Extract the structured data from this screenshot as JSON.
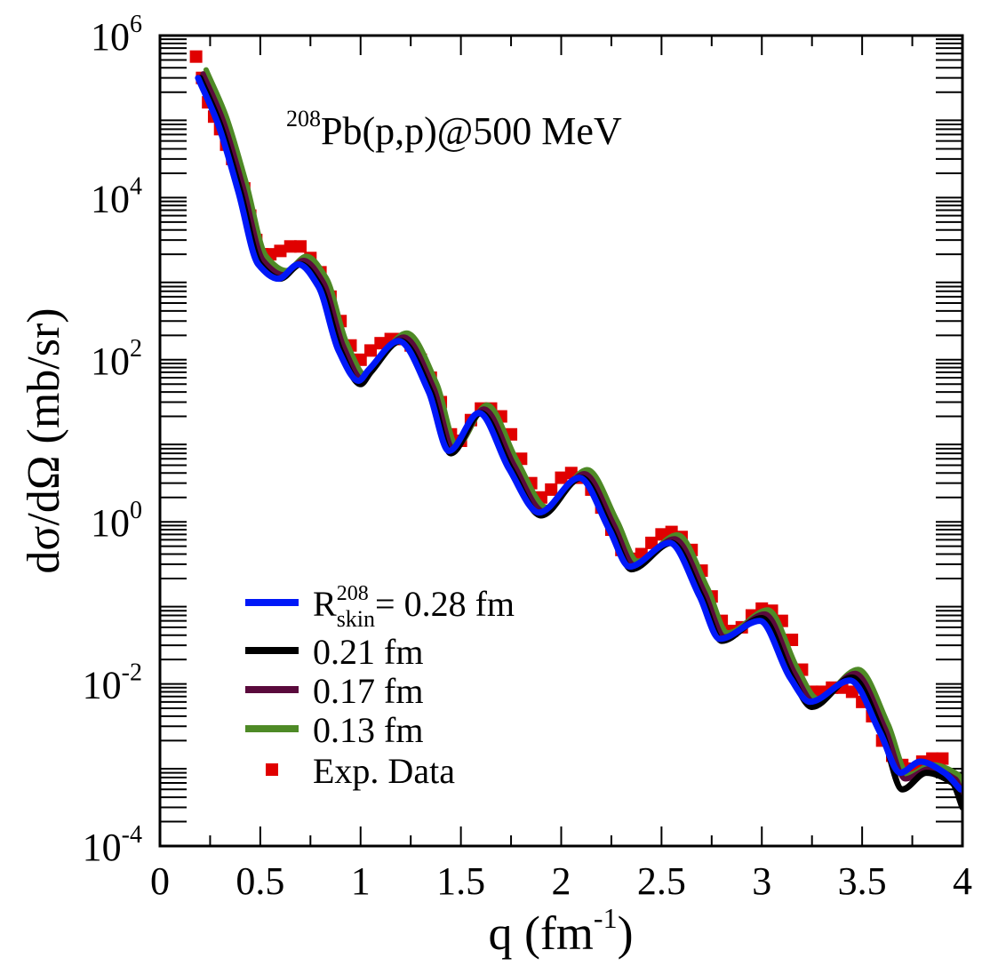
{
  "chart_data": {
    "type": "line",
    "title": "208Pb(p,p)@500 MeV",
    "title_parts": {
      "sup": "208",
      "main": "Pb(p,p)@500 MeV"
    },
    "xlabel": "q (fm-1)",
    "xlabel_parts": {
      "main": "q (fm",
      "sup": "-1",
      "close": ")"
    },
    "ylabel": "dσ/dΩ (mb/sr)",
    "x_scale": "linear",
    "y_scale": "log",
    "xlim": [
      0,
      4
    ],
    "ylim": [
      0.0001,
      1000000
    ],
    "x_ticks": [
      0,
      0.5,
      1,
      1.5,
      2,
      2.5,
      3,
      3.5,
      4
    ],
    "x_tick_labels": [
      "0",
      "0.5",
      "1",
      "1.5",
      "2",
      "2.5",
      "3",
      "3.5",
      "4"
    ],
    "y_ticks": [
      {
        "value": 0.0001,
        "base": "10",
        "exp": "-4"
      },
      {
        "value": 0.01,
        "base": "10",
        "exp": "-2"
      },
      {
        "value": 1,
        "base": "10",
        "exp": "0"
      },
      {
        "value": 100,
        "base": "10",
        "exp": "2"
      },
      {
        "value": 10000,
        "base": "10",
        "exp": "4"
      },
      {
        "value": 1000000,
        "base": "10",
        "exp": "6"
      }
    ],
    "legend_position": "bottom-left",
    "legend": [
      {
        "label_main": "R",
        "label_sup": "208",
        "label_sub": "skin",
        "label_rest": "= 0.28 fm",
        "color": "#0018f8",
        "kind": "line"
      },
      {
        "label_main": "0.21 fm",
        "color": "#000000",
        "kind": "line"
      },
      {
        "label_main": "0.17 fm",
        "color": "#5a0a3c",
        "kind": "line"
      },
      {
        "label_main": "0.13 fm",
        "color": "#4e8a26",
        "kind": "line"
      },
      {
        "label_main": "Exp. Data",
        "color": "#e00000",
        "kind": "marker"
      }
    ],
    "series": [
      {
        "name": "0.13 fm",
        "color": "#4e8a26",
        "width": 6,
        "x_shift": 0.03,
        "y_shift_dec": 0.1,
        "x": [
          0.2,
          0.3,
          0.4,
          0.5,
          0.6,
          0.7,
          0.8,
          0.9,
          1.0,
          1.05,
          1.2,
          1.35,
          1.45,
          1.6,
          1.75,
          1.9,
          2.1,
          2.25,
          2.35,
          2.55,
          2.7,
          2.8,
          3.0,
          3.15,
          3.25,
          3.45,
          3.6,
          3.7,
          3.82,
          3.95,
          4.0
        ],
        "y": [
          300000,
          80000,
          12000,
          1500,
          1000,
          1500,
          800,
          130,
          50,
          70,
          170,
          40,
          7,
          22,
          4.5,
          1.2,
          3.5,
          0.8,
          0.26,
          0.55,
          0.12,
          0.034,
          0.065,
          0.012,
          0.0052,
          0.012,
          0.0025,
          0.0006,
          0.0008,
          0.0006,
          0.0003
        ]
      },
      {
        "name": "0.17 fm",
        "color": "#5a0a3c",
        "width": 6,
        "x_shift": 0.015,
        "y_shift_dec": 0.05,
        "x": [
          0.2,
          0.3,
          0.4,
          0.5,
          0.6,
          0.7,
          0.8,
          0.9,
          1.0,
          1.05,
          1.2,
          1.35,
          1.45,
          1.6,
          1.75,
          1.9,
          2.1,
          2.25,
          2.35,
          2.55,
          2.7,
          2.8,
          3.0,
          3.15,
          3.25,
          3.45,
          3.6,
          3.7,
          3.82,
          3.95,
          4.0
        ],
        "y": [
          300000,
          80000,
          12000,
          1500,
          1000,
          1500,
          800,
          130,
          50,
          70,
          170,
          40,
          7,
          22,
          4.5,
          1.2,
          3.5,
          0.8,
          0.26,
          0.55,
          0.12,
          0.034,
          0.065,
          0.012,
          0.0052,
          0.012,
          0.0025,
          0.0006,
          0.0008,
          0.0006,
          0.0003
        ]
      },
      {
        "name": "0.21 fm",
        "color": "#000000",
        "width": 7,
        "x_shift": 0.0,
        "y_shift_dec": 0.0,
        "x": [
          0.2,
          0.3,
          0.4,
          0.5,
          0.6,
          0.7,
          0.8,
          0.9,
          1.0,
          1.05,
          1.2,
          1.35,
          1.45,
          1.6,
          1.75,
          1.9,
          2.1,
          2.25,
          2.35,
          2.55,
          2.7,
          2.8,
          3.0,
          3.15,
          3.25,
          3.45,
          3.6,
          3.7,
          3.82,
          3.95,
          4.0
        ],
        "y": [
          300000,
          80000,
          12000,
          1500,
          1000,
          1500,
          800,
          130,
          50,
          70,
          170,
          40,
          7,
          22,
          4.5,
          1.2,
          3.5,
          0.8,
          0.26,
          0.55,
          0.12,
          0.034,
          0.065,
          0.012,
          0.0052,
          0.012,
          0.0025,
          0.0005,
          0.0008,
          0.0006,
          0.0003
        ]
      },
      {
        "name": "R208skin = 0.28 fm",
        "color": "#0018f8",
        "width": 7,
        "x_shift": -0.01,
        "y_shift_dec": 0.0,
        "x": [
          0.2,
          0.3,
          0.4,
          0.5,
          0.6,
          0.7,
          0.8,
          0.9,
          1.0,
          1.05,
          1.2,
          1.35,
          1.45,
          1.6,
          1.75,
          1.9,
          2.1,
          2.25,
          2.35,
          2.55,
          2.7,
          2.8,
          3.0,
          3.15,
          3.25,
          3.45,
          3.6,
          3.7,
          3.8,
          3.92,
          4.0
        ],
        "y": [
          300000,
          80000,
          12000,
          1500,
          1000,
          1500,
          800,
          130,
          55,
          75,
          170,
          40,
          7.5,
          22,
          4.5,
          1.3,
          3.5,
          0.8,
          0.28,
          0.55,
          0.12,
          0.036,
          0.06,
          0.012,
          0.006,
          0.011,
          0.0025,
          0.0008,
          0.0011,
          0.0008,
          0.0005
        ]
      }
    ],
    "exp_data": {
      "name": "Exp. Data",
      "color": "#e00000",
      "x": [
        0.18,
        0.21,
        0.24,
        0.27,
        0.3,
        0.33,
        0.36,
        0.39,
        0.42,
        0.45,
        0.48,
        0.51,
        0.55,
        0.6,
        0.65,
        0.7,
        0.75,
        0.8,
        0.85,
        0.9,
        0.95,
        1.0,
        1.05,
        1.1,
        1.15,
        1.2,
        1.25,
        1.3,
        1.35,
        1.4,
        1.45,
        1.5,
        1.55,
        1.6,
        1.65,
        1.7,
        1.75,
        1.8,
        1.85,
        1.9,
        1.95,
        2.0,
        2.05,
        2.1,
        2.15,
        2.2,
        2.25,
        2.3,
        2.35,
        2.4,
        2.45,
        2.5,
        2.55,
        2.6,
        2.65,
        2.7,
        2.75,
        2.8,
        2.85,
        2.9,
        2.95,
        3.0,
        3.05,
        3.1,
        3.15,
        3.2,
        3.25,
        3.3,
        3.35,
        3.4,
        3.45,
        3.5,
        3.55,
        3.6,
        3.65,
        3.7,
        3.75,
        3.8,
        3.85,
        3.9
      ],
      "y": [
        550000,
        300000,
        150000,
        100000,
        70000,
        45000,
        30000,
        20000,
        13000,
        6000,
        3000,
        2000,
        2000,
        2200,
        2500,
        2500,
        1800,
        1200,
        600,
        300,
        150,
        100,
        130,
        160,
        180,
        180,
        150,
        100,
        60,
        30,
        12,
        10,
        18,
        25,
        25,
        20,
        12,
        6,
        3,
        2,
        2.5,
        3.5,
        4,
        3.5,
        2.5,
        1.5,
        0.8,
        0.45,
        0.35,
        0.4,
        0.55,
        0.7,
        0.75,
        0.65,
        0.45,
        0.25,
        0.12,
        0.06,
        0.045,
        0.05,
        0.07,
        0.085,
        0.08,
        0.06,
        0.035,
        0.015,
        0.008,
        0.008,
        0.009,
        0.009,
        0.008,
        0.006,
        0.004,
        0.002,
        0.0013,
        0.001,
        0.0009,
        0.0011,
        0.0012,
        0.0012
      ]
    }
  }
}
